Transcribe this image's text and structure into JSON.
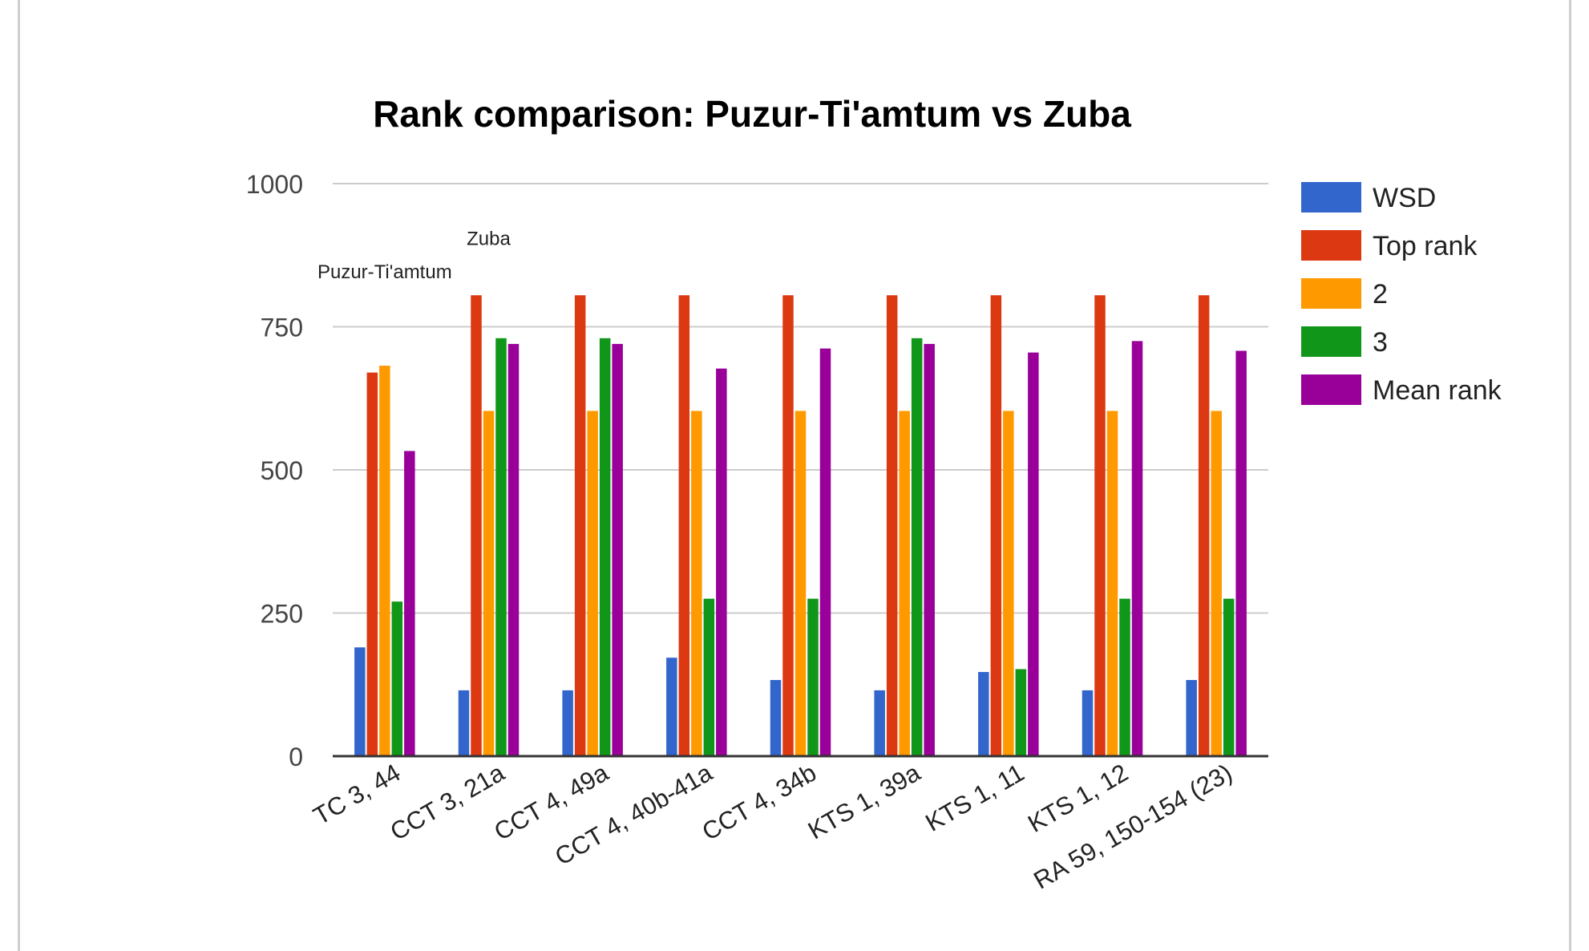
{
  "chart_data": {
    "type": "bar",
    "title": "Rank comparison: Puzur-Ti'amtum vs Zuba",
    "xlabel": "",
    "ylabel": "",
    "ylim": [
      0,
      1000
    ],
    "yticks": [
      0,
      250,
      500,
      750,
      1000
    ],
    "grid": true,
    "legend_position": "right",
    "categories": [
      "TC 3, 44",
      "CCT 3, 21a",
      "CCT 4, 49a",
      "CCT 4, 40b-41a",
      "CCT 4, 34b",
      "KTS 1, 39a",
      "KTS 1, 11",
      "KTS 1, 12",
      "RA 59, 150-154 (23)"
    ],
    "series": [
      {
        "name": "WSD",
        "color": "#3366cc",
        "values": [
          190,
          115,
          115,
          172,
          133,
          115,
          147,
          115,
          133
        ]
      },
      {
        "name": "Top rank",
        "color": "#dc3912",
        "values": [
          670,
          805,
          805,
          805,
          805,
          805,
          805,
          805,
          805
        ]
      },
      {
        "name": "2",
        "color": "#ff9900",
        "values": [
          682,
          603,
          603,
          603,
          603,
          603,
          603,
          603,
          603
        ]
      },
      {
        "name": "3",
        "color": "#109618",
        "values": [
          270,
          730,
          730,
          275,
          275,
          730,
          152,
          275,
          275
        ]
      },
      {
        "name": "Mean rank",
        "color": "#990099",
        "values": [
          533,
          720,
          720,
          677,
          712,
          720,
          705,
          725,
          708
        ]
      }
    ],
    "annotations": [
      {
        "text": "Puzur-Ti'amtum",
        "category": "TC 3, 44",
        "value": 835
      },
      {
        "text": "Zuba",
        "category": "CCT 3, 21a",
        "value": 893
      }
    ]
  }
}
